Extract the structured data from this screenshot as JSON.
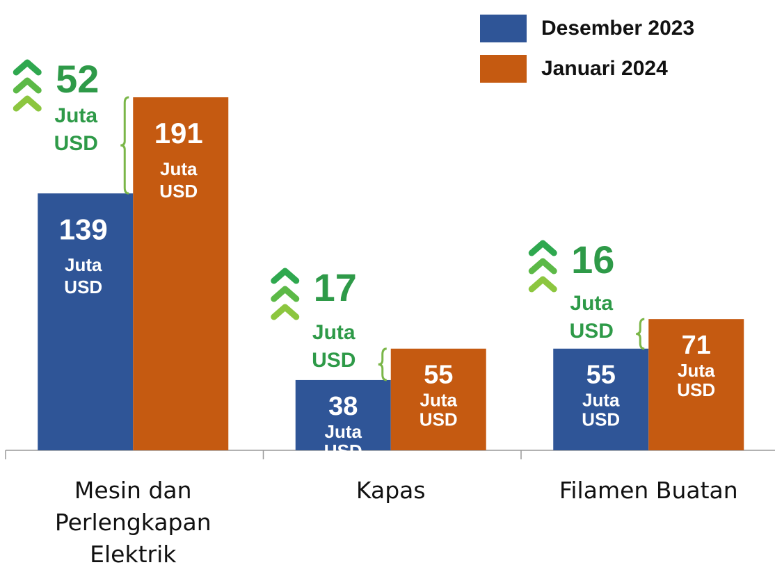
{
  "chart_data": {
    "type": "bar",
    "categories": [
      "Mesin dan Perlengkapan Elektrik",
      "Kapas",
      "Filamen Buatan"
    ],
    "series": [
      {
        "name": "Desember 2023",
        "color": "#2f5597",
        "values": [
          139,
          38,
          55
        ]
      },
      {
        "name": "Januari 2024",
        "color": "#c55a11",
        "values": [
          191,
          55,
          71
        ]
      }
    ],
    "unit": [
      "Juta",
      "USD"
    ],
    "differences": [
      52,
      17,
      16
    ],
    "difference_color": "#2e9a48",
    "legend": "top-right"
  }
}
